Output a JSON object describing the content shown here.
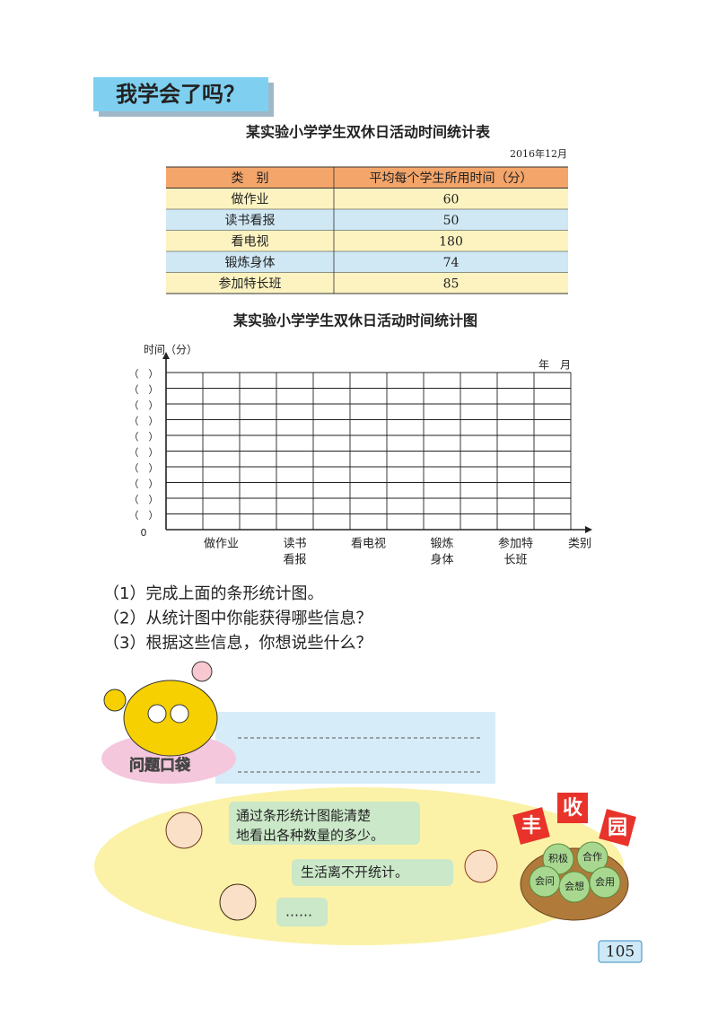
{
  "header": {
    "title": "我学会了吗？"
  },
  "table": {
    "title": "某实验小学学生双休日活动时间统计表",
    "date": "2016年12月",
    "columns": [
      "类　别",
      "平均每个学生所用时间（分）"
    ],
    "rows": [
      [
        "做作业",
        60
      ],
      [
        "读书看报",
        50
      ],
      [
        "看电视",
        180
      ],
      [
        "锻炼身体",
        74
      ],
      [
        "参加特长班",
        85
      ]
    ]
  },
  "chart": {
    "title": "某实验小学学生双休日活动时间统计图",
    "y_label": "时间（分）",
    "date_blank": "年　月",
    "y_ticks": [
      "（　）",
      "（　）",
      "（　）",
      "（　）",
      "（　）",
      "（　）",
      "（　）",
      "（　）",
      "（　）",
      "（　）"
    ],
    "origin": "0",
    "categories": [
      [
        "做作业"
      ],
      [
        "读书",
        "看报"
      ],
      [
        "看电视"
      ],
      [
        "锻炼",
        "身体"
      ],
      [
        "参加特",
        "长班"
      ]
    ],
    "x_label": "类别"
  },
  "questions": [
    "（1）完成上面的条形统计图。",
    "（2）从统计图中你能获得哪些信息？",
    "（3）根据这些信息，你想说些什么？"
  ],
  "pocket": {
    "label": "问题口袋"
  },
  "dialog": {
    "bubbles": [
      [
        "通过条形统计图能清楚",
        "地看出各种数量的多少。"
      ],
      [
        "生活离不开统计。"
      ],
      [
        "……"
      ]
    ]
  },
  "harvest": {
    "title": [
      "丰",
      "收",
      "园"
    ],
    "apples": [
      "积极",
      "合作",
      "会问",
      "会想",
      "会用"
    ]
  },
  "page_number": 105
}
